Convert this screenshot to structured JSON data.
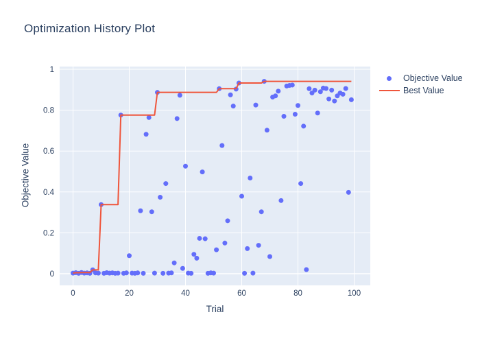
{
  "chart_data": {
    "type": "scatter",
    "title": "Optimization History Plot",
    "xlabel": "Trial",
    "ylabel": "Objective Value",
    "xlim": [
      -5,
      106
    ],
    "ylim": [
      -0.07,
      1.01
    ],
    "xticks": [
      0,
      20,
      40,
      60,
      80,
      100
    ],
    "yticks": [
      0,
      0.2,
      0.4,
      0.6,
      0.8,
      1
    ],
    "grid": true,
    "legend_position": "right-top",
    "colors": {
      "plot_background": "#e5ecf6",
      "grid": "#ffffff",
      "text": "#2a3f5f",
      "marker": "#636efa",
      "best_line": "#ef553b",
      "paper": "#ffffff"
    },
    "x": "trial index 0-99",
    "series": [
      {
        "name": "Objective Value",
        "type": "scatter",
        "color": "#636efa",
        "values": [
          0.003,
          0.005,
          0.002,
          0.006,
          0.003,
          0.004,
          0.002,
          0.019,
          0.004,
          0.003,
          0.338,
          0.002,
          0.005,
          0.003,
          0.004,
          0.002,
          0.003,
          0.776,
          0.002,
          0.004,
          0.088,
          0.003,
          0.002,
          0.004,
          0.308,
          0.002,
          0.682,
          0.764,
          0.303,
          0.003,
          0.887,
          0.374,
          0.002,
          0.441,
          0.003,
          0.004,
          0.053,
          0.759,
          0.873,
          0.026,
          0.526,
          0.003,
          0.002,
          0.095,
          0.076,
          0.173,
          0.498,
          0.171,
          0.002,
          0.004,
          0.003,
          0.117,
          0.905,
          0.627,
          0.15,
          0.259,
          0.875,
          0.82,
          0.903,
          0.933,
          0.379,
          0.002,
          0.123,
          0.468,
          0.003,
          0.825,
          0.139,
          0.303,
          0.941,
          0.702,
          0.084,
          0.864,
          0.87,
          0.893,
          0.358,
          0.77,
          0.918,
          0.921,
          0.923,
          0.78,
          0.823,
          0.441,
          0.722,
          0.02,
          0.905,
          0.884,
          0.898,
          0.786,
          0.89,
          0.908,
          0.906,
          0.855,
          0.898,
          0.845,
          0.87,
          0.884,
          0.878,
          0.906,
          0.398,
          0.851
        ]
      },
      {
        "name": "Best Value",
        "type": "line",
        "color": "#ef553b",
        "derivation": "cumulative maximum of Objective Value",
        "values": [
          0.003,
          0.005,
          0.005,
          0.006,
          0.006,
          0.006,
          0.006,
          0.019,
          0.019,
          0.019,
          0.338,
          0.338,
          0.338,
          0.338,
          0.338,
          0.338,
          0.338,
          0.776,
          0.776,
          0.776,
          0.776,
          0.776,
          0.776,
          0.776,
          0.776,
          0.776,
          0.776,
          0.776,
          0.776,
          0.776,
          0.887,
          0.887,
          0.887,
          0.887,
          0.887,
          0.887,
          0.887,
          0.887,
          0.887,
          0.887,
          0.887,
          0.887,
          0.887,
          0.887,
          0.887,
          0.887,
          0.887,
          0.887,
          0.887,
          0.887,
          0.887,
          0.887,
          0.905,
          0.905,
          0.905,
          0.905,
          0.905,
          0.905,
          0.905,
          0.933,
          0.933,
          0.933,
          0.933,
          0.933,
          0.933,
          0.933,
          0.933,
          0.933,
          0.941,
          0.941,
          0.941,
          0.941,
          0.941,
          0.941,
          0.941,
          0.941,
          0.941,
          0.941,
          0.941,
          0.941,
          0.941,
          0.941,
          0.941,
          0.941,
          0.941,
          0.941,
          0.941,
          0.941,
          0.941,
          0.941,
          0.941,
          0.941,
          0.941,
          0.941,
          0.941,
          0.941,
          0.941,
          0.941,
          0.941,
          0.941
        ]
      }
    ]
  }
}
